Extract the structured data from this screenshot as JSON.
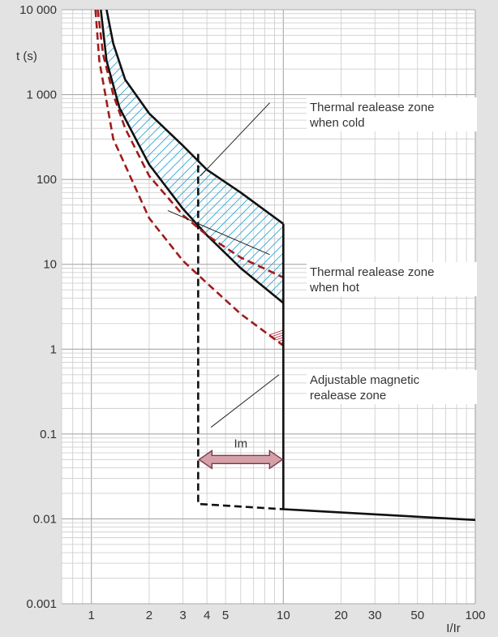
{
  "chart_data": {
    "type": "line",
    "title": "",
    "xlabel": "I/Ir",
    "ylabel": "t (s)",
    "x_scale": "log",
    "y_scale": "log",
    "xlim": [
      0.7,
      100
    ],
    "ylim": [
      0.001,
      10000
    ],
    "grid": true,
    "x_ticks": [
      {
        "value": 1,
        "label": "1"
      },
      {
        "value": 2,
        "label": "2"
      },
      {
        "value": 3,
        "label": "3"
      },
      {
        "value": 4,
        "label": "4"
      },
      {
        "value": 5,
        "label": "5"
      },
      {
        "value": 10,
        "label": "10"
      },
      {
        "value": 20,
        "label": "20"
      },
      {
        "value": 30,
        "label": "30"
      },
      {
        "value": 50,
        "label": "50"
      },
      {
        "value": 100,
        "label": "100"
      }
    ],
    "y_ticks": [
      {
        "value": 0.001,
        "label": "0.001"
      },
      {
        "value": 0.01,
        "label": "0.01"
      },
      {
        "value": 0.1,
        "label": "0.1"
      },
      {
        "value": 1,
        "label": "1"
      },
      {
        "value": 10,
        "label": "10"
      },
      {
        "value": 100,
        "label": "100"
      },
      {
        "value": 1000,
        "label": "1 000"
      },
      {
        "value": 10000,
        "label": "10 000"
      }
    ],
    "series": [
      {
        "color": "#111111",
        "style": "solid",
        "points": [
          [
            1.2,
            10000
          ],
          [
            1.3,
            4000
          ],
          [
            1.5,
            1500
          ],
          [
            2,
            600
          ],
          [
            3,
            250
          ],
          [
            4,
            130
          ],
          [
            6,
            70
          ],
          [
            10,
            30
          ]
        ]
      },
      {
        "color": "#111111",
        "style": "solid",
        "points": [
          [
            1.12,
            10000
          ],
          [
            1.2,
            2500
          ],
          [
            1.4,
            700
          ],
          [
            2,
            150
          ],
          [
            3,
            45
          ],
          [
            4,
            22
          ],
          [
            6,
            9
          ],
          [
            10,
            3.5
          ]
        ]
      },
      {
        "color": "#a01c1c",
        "style": "dashed",
        "points": [
          [
            1.08,
            10000
          ],
          [
            1.15,
            3000
          ],
          [
            1.3,
            1000
          ],
          [
            1.5,
            400
          ],
          [
            2,
            110
          ],
          [
            3,
            38
          ],
          [
            4,
            22
          ],
          [
            6,
            12
          ],
          [
            10,
            7
          ]
        ]
      },
      {
        "color": "#a01c1c",
        "style": "dashed",
        "points": [
          [
            1.05,
            10000
          ],
          [
            1.1,
            2500
          ],
          [
            1.3,
            300
          ],
          [
            2,
            35
          ],
          [
            3,
            11
          ],
          [
            4,
            6
          ],
          [
            6,
            2.6
          ],
          [
            10,
            1.1
          ]
        ]
      },
      {
        "color": "#111111",
        "style": "solid",
        "points": [
          [
            10,
            30
          ],
          [
            10,
            0.013
          ],
          [
            100,
            0.0097
          ]
        ]
      },
      {
        "color": "#111111",
        "style": "dashed",
        "points": [
          [
            3.6,
            200
          ],
          [
            3.6,
            0.015
          ],
          [
            10,
            0.013
          ]
        ]
      }
    ],
    "regions": [
      {
        "between": [
          0,
          1
        ],
        "hatch_color": "#2aa7d8",
        "hatch": "diagonal-up"
      },
      {
        "between": [
          2,
          3
        ],
        "hatch_color": "#c0283a",
        "hatch": "horizontal"
      }
    ],
    "im_arrow": {
      "label": "Im",
      "x_from": 3.6,
      "x_to": 10,
      "y": 0.05,
      "fill": "#d6a0a8",
      "stroke": "#7a3a48"
    },
    "annotations": [
      {
        "lines": [
          "Thermal realease zone",
          "when cold"
        ],
        "pointer_from": [
          8.5,
          800
        ],
        "pointer_to": [
          3.7,
          110
        ]
      },
      {
        "lines": [
          "Thermal realease zone",
          "when hot"
        ],
        "pointer_from": [
          8.5,
          13
        ],
        "pointer_to": [
          2.5,
          43
        ]
      },
      {
        "lines": [
          "Adjustable magnetic",
          "realease zone"
        ],
        "pointer_from": [
          9.5,
          0.5
        ],
        "pointer_to": [
          4.2,
          0.12
        ]
      }
    ]
  }
}
